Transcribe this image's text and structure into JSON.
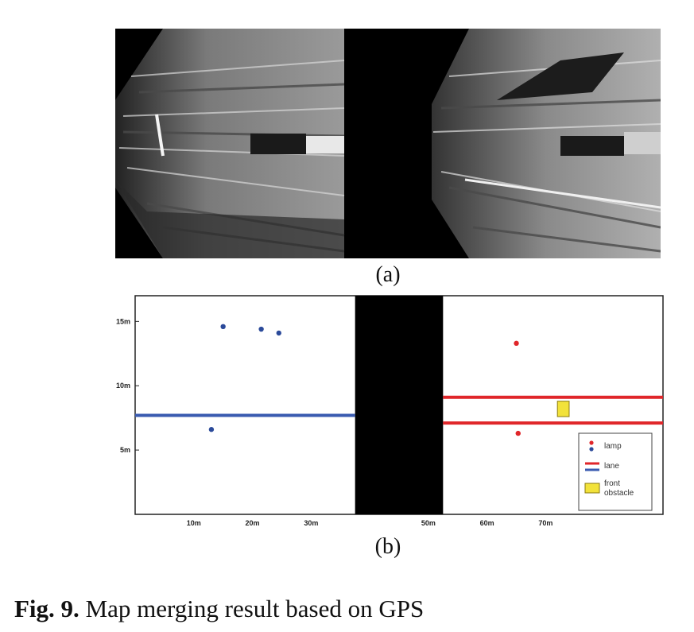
{
  "panel_a": {
    "label": "(a)"
  },
  "panel_b": {
    "label": "(b)"
  },
  "caption": {
    "prefix": "Fig. 9.",
    "text": " Map merging result based on GPS"
  },
  "chart_data": {
    "type": "scatter",
    "xlabel": "",
    "ylabel": "",
    "xlim": [
      0,
      90
    ],
    "ylim": [
      0,
      17
    ],
    "y_ticks": [
      {
        "value": 15,
        "label": "15m"
      },
      {
        "value": 10,
        "label": "10m"
      },
      {
        "value": 5,
        "label": "5m"
      }
    ],
    "x_ticks": [
      {
        "value": 10,
        "label": "10m"
      },
      {
        "value": 20,
        "label": "20m"
      },
      {
        "value": 30,
        "label": "30m"
      },
      {
        "value": 50,
        "label": "50m"
      },
      {
        "value": 60,
        "label": "60m"
      },
      {
        "value": 70,
        "label": "70m"
      }
    ],
    "gap_x": [
      37.5,
      52.5
    ],
    "lamps": [
      {
        "group": "blue",
        "color": "#2b4a9a",
        "points": [
          [
            15,
            14.6
          ],
          [
            21.5,
            14.4
          ],
          [
            24.5,
            14.1
          ],
          [
            13,
            6.6
          ]
        ]
      },
      {
        "group": "red",
        "color": "#e0262a",
        "points": [
          [
            65,
            13.3
          ],
          [
            65.3,
            6.3
          ]
        ]
      }
    ],
    "lanes": [
      {
        "group": "blue",
        "color": "#3a5bb0",
        "y": 7.7,
        "x_range": [
          0,
          37.5
        ]
      },
      {
        "group": "red",
        "color": "#e0262a",
        "y": 9.1,
        "x_range": [
          52.5,
          90
        ]
      },
      {
        "group": "red",
        "color": "#e0262a",
        "y": 7.1,
        "x_range": [
          52.5,
          90
        ]
      }
    ],
    "obstacles": [
      {
        "color": "#f2e23a",
        "x_range": [
          72,
          74
        ],
        "y_range": [
          7.6,
          8.8
        ]
      }
    ],
    "legend": {
      "placement": "bottom-right",
      "entries": [
        {
          "label": "lamp",
          "kind": "dots"
        },
        {
          "label": "lane",
          "kind": "lines"
        },
        {
          "label": "front obstacle",
          "kind": "box"
        }
      ]
    }
  }
}
